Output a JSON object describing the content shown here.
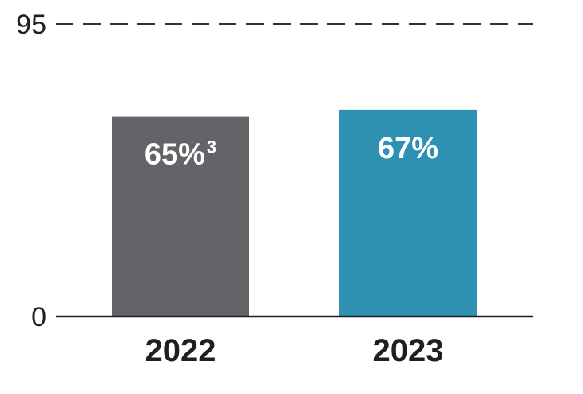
{
  "chart_data": {
    "type": "bar",
    "categories": [
      "2022",
      "2023"
    ],
    "values": [
      65,
      67
    ],
    "value_labels": [
      "65%",
      "67%"
    ],
    "value_footnotes": [
      "3",
      ""
    ],
    "colors": [
      "#636467",
      "#2e91b1"
    ],
    "ylim": [
      0,
      95
    ],
    "y_ticks": [
      "0",
      "95"
    ],
    "reference_line": {
      "value": 95,
      "style": "dashed"
    },
    "title": "",
    "xlabel": "",
    "ylabel": ""
  }
}
